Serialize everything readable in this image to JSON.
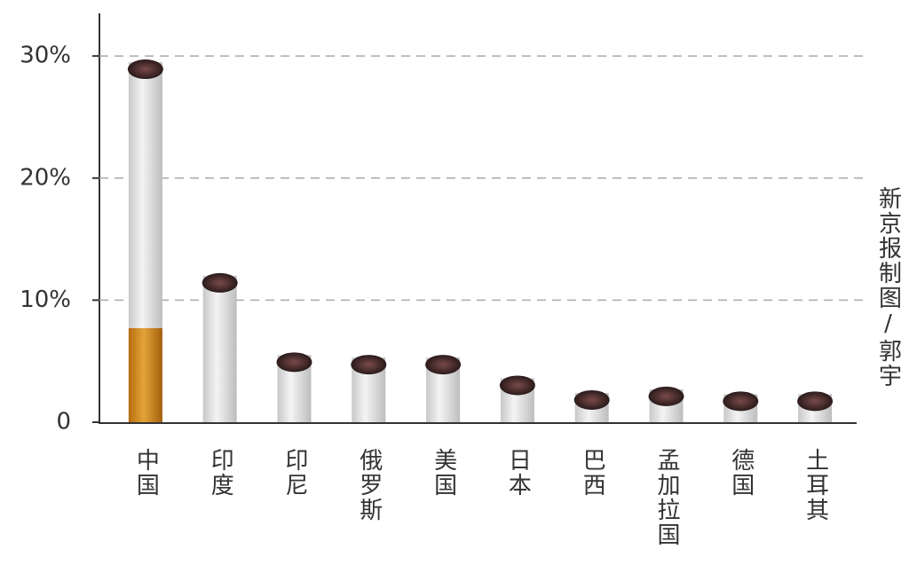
{
  "chart_data": {
    "type": "bar",
    "categories": [
      "中国",
      "印度",
      "印尼",
      "俄罗斯",
      "美国",
      "日本",
      "巴西",
      "孟加拉国",
      "德国",
      "土耳其"
    ],
    "values": [
      29.5,
      12,
      5.5,
      5.3,
      5.3,
      3.6,
      2.4,
      2.7,
      2.3,
      2.3
    ],
    "color": "#e8e8e8",
    "ylim": [
      0,
      33.5
    ],
    "yticks": [
      0,
      {
        "value": 10,
        "label": "10%"
      },
      {
        "value": 20,
        "label": "20%"
      },
      {
        "value": 30,
        "label": "30%"
      }
    ],
    "grid": true,
    "credit": "新京报制图/郭宇"
  }
}
